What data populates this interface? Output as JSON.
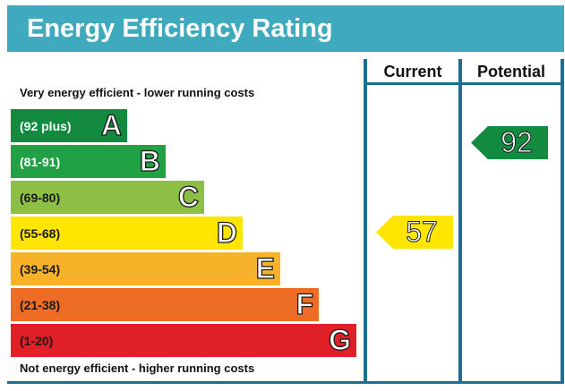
{
  "title": "Energy Efficiency Rating",
  "columns": {
    "current": "Current",
    "potential": "Potential"
  },
  "captions": {
    "top": "Very energy efficient - lower running costs",
    "bottom": "Not energy efficient - higher running costs"
  },
  "bands": [
    {
      "letter": "A",
      "range": "(92 plus)",
      "color": "#128a3f",
      "text_color": "#ffffff"
    },
    {
      "letter": "B",
      "range": "(81-91)",
      "color": "#21a045",
      "text_color": "#ffffff"
    },
    {
      "letter": "C",
      "range": "(69-80)",
      "color": "#8dbe45",
      "text_color": "#1a1a1a"
    },
    {
      "letter": "D",
      "range": "(55-68)",
      "color": "#ffe600",
      "text_color": "#1a1a1a"
    },
    {
      "letter": "E",
      "range": "(39-54)",
      "color": "#f7b12b",
      "text_color": "#1a1a1a"
    },
    {
      "letter": "F",
      "range": "(21-38)",
      "color": "#ee6d26",
      "text_color": "#1a1a1a"
    },
    {
      "letter": "G",
      "range": "(1-20)",
      "color": "#e11f26",
      "text_color": "#1a1a1a"
    }
  ],
  "current": {
    "value": "57",
    "band": "D",
    "color": "#ffe600",
    "text_color": "#ffffff"
  },
  "potential": {
    "value": "92",
    "band": "A",
    "color": "#128a3f",
    "text_color": "#ffffff"
  }
}
